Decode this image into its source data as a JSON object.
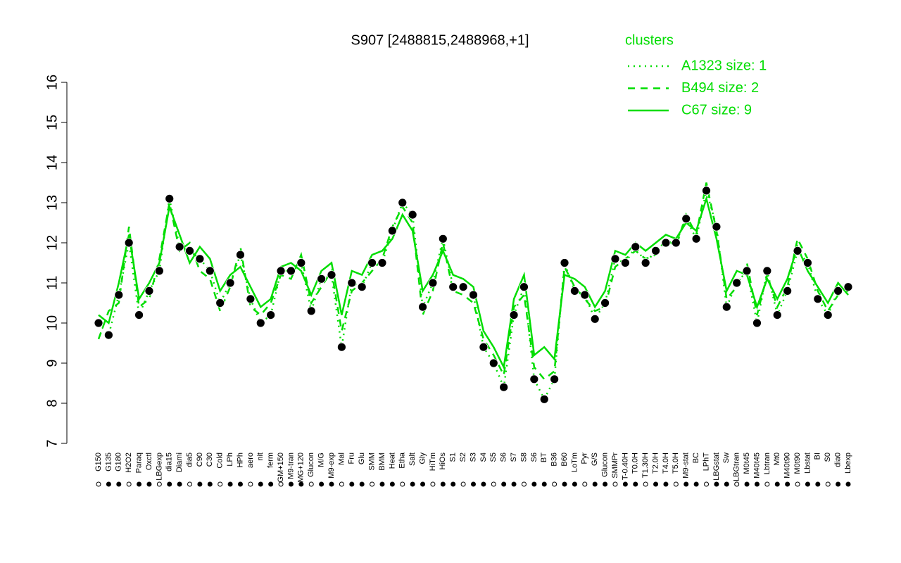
{
  "chart_data": {
    "type": "line",
    "title": "S907 [2488815,2488968,+1]",
    "legend_title": "clusters",
    "legend_position": "top-right",
    "legend_color": "#00dd00",
    "point_color": "#000000",
    "ylim": [
      7,
      16
    ],
    "yticks": [
      7,
      8,
      9,
      10,
      11,
      12,
      13,
      14,
      15,
      16
    ],
    "categories": [
      "G150",
      "G135",
      "G180",
      "H2O2",
      "Paraq",
      "Oxctl",
      "LBGexp",
      "dia15",
      "Diami",
      "dia5",
      "C90",
      "C30",
      "Cold",
      "LPh",
      "HPh",
      "aero",
      "nit",
      "ferm",
      "GM+150",
      "M9-tran",
      "MG+120",
      "Glucon",
      "M/G",
      "M9-exp",
      "Mal",
      "Fru",
      "Glu",
      "SMM",
      "BMM",
      "Heat",
      "Etha",
      "Salt",
      "Gly",
      "HiTm",
      "HiOs",
      "S1",
      "S2",
      "S3",
      "S4",
      "S5",
      "S6",
      "S7",
      "S8",
      "S6",
      "BT",
      "B36",
      "B60",
      "LoTm",
      "Pyr",
      "G/S",
      "Glucon",
      "SMMPr",
      "T-0.40H",
      "T0.0H",
      "T1.30H",
      "T2.0H",
      "T4.0H",
      "T5.0H",
      "M9-stat",
      "BC",
      "LPhT",
      "LBGstat",
      "Sw",
      "LBGtran",
      "M0t45",
      "M40t45",
      "Lbtran",
      "Mt0",
      "M40t90",
      "M0t90",
      "Lbstat",
      "BI",
      "S0",
      "dia0",
      "Lbexp"
    ],
    "series": [
      {
        "name": "A1323 size: 1",
        "color": "#00dd00",
        "style": "dotted",
        "points": true,
        "values": [
          10.0,
          9.7,
          10.7,
          12.0,
          10.2,
          10.8,
          11.3,
          13.1,
          11.9,
          11.8,
          11.6,
          11.3,
          10.5,
          11.0,
          11.7,
          10.6,
          10.0,
          10.2,
          11.3,
          11.3,
          11.5,
          10.3,
          11.1,
          11.2,
          9.4,
          11.0,
          10.9,
          11.5,
          11.5,
          12.3,
          13.0,
          12.7,
          10.4,
          11.0,
          12.1,
          10.9,
          10.9,
          10.7,
          9.4,
          9.0,
          8.4,
          10.2,
          10.9,
          8.6,
          8.1,
          8.6,
          11.5,
          10.8,
          10.7,
          10.1,
          10.5,
          11.6,
          11.5,
          11.9,
          11.5,
          11.8,
          12.0,
          12.0,
          12.6,
          12.1,
          13.3,
          12.4,
          10.4,
          11.0,
          11.3,
          10.0,
          11.3,
          10.2,
          10.8,
          11.8,
          11.5,
          10.6,
          10.2,
          10.8,
          10.9
        ]
      },
      {
        "name": "B494 size: 2",
        "color": "#00dd00",
        "style": "dashed",
        "points": false,
        "values": [
          9.6,
          10.3,
          10.5,
          12.4,
          10.4,
          10.6,
          11.6,
          13.0,
          11.8,
          12.0,
          11.3,
          11.1,
          10.3,
          10.9,
          11.9,
          10.4,
          10.2,
          10.5,
          11.2,
          11.1,
          11.7,
          10.5,
          10.9,
          11.3,
          9.8,
          10.8,
          11.0,
          11.3,
          11.6,
          12.4,
          12.9,
          12.5,
          10.2,
          10.8,
          12.0,
          10.8,
          10.7,
          10.5,
          9.6,
          9.2,
          8.7,
          10.4,
          10.7,
          8.9,
          8.6,
          8.8,
          11.4,
          10.9,
          10.6,
          10.3,
          10.4,
          11.4,
          11.6,
          11.8,
          11.6,
          11.7,
          12.1,
          11.9,
          12.7,
          12.2,
          13.5,
          12.3,
          10.6,
          10.9,
          11.5,
          10.2,
          11.2,
          10.4,
          10.9,
          12.1,
          11.6,
          10.8,
          10.3,
          10.7,
          10.8
        ]
      },
      {
        "name": "C67 size: 9",
        "color": "#00dd00",
        "style": "solid",
        "points": false,
        "values": [
          10.2,
          10.0,
          11.0,
          12.2,
          10.6,
          11.0,
          11.5,
          12.9,
          12.2,
          11.5,
          11.9,
          11.6,
          10.8,
          11.2,
          11.4,
          10.9,
          10.4,
          10.6,
          11.4,
          11.5,
          11.3,
          10.7,
          11.3,
          11.5,
          10.2,
          11.3,
          11.2,
          11.7,
          11.8,
          12.1,
          12.7,
          12.3,
          10.8,
          11.2,
          11.8,
          11.2,
          11.1,
          10.9,
          9.8,
          9.4,
          8.9,
          10.6,
          11.2,
          9.2,
          9.4,
          9.1,
          11.2,
          11.1,
          10.9,
          10.4,
          10.8,
          11.8,
          11.7,
          12.0,
          11.8,
          12.0,
          12.2,
          12.1,
          12.5,
          12.3,
          13.1,
          12.1,
          10.8,
          11.3,
          11.2,
          10.4,
          11.1,
          10.6,
          11.1,
          11.9,
          11.3,
          10.9,
          10.5,
          11.0,
          10.7
        ]
      }
    ]
  }
}
